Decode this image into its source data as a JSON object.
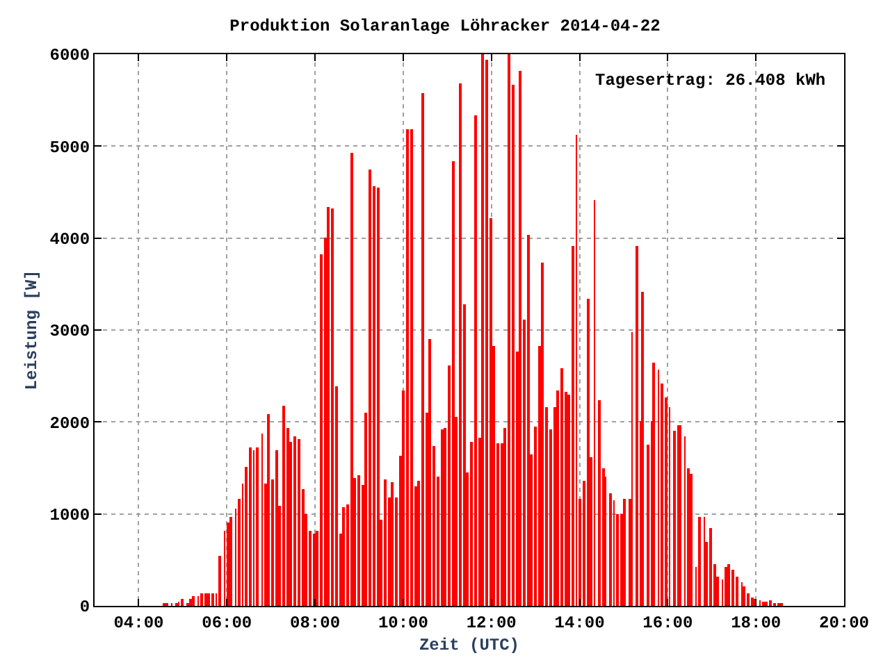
{
  "chart_data": {
    "type": "bar",
    "title": "Produktion Solaranlage Löhracker 2014-04-22",
    "xlabel": "Zeit (UTC)",
    "ylabel": "Leistung [W]",
    "annotations": [
      "Tagesertrag: 26.408 kWh"
    ],
    "x": [
      4.59,
      4.65,
      4.75,
      4.85,
      4.91,
      5.0,
      5.1,
      5.19,
      5.25,
      5.35,
      5.44,
      5.51,
      5.6,
      5.69,
      5.76,
      5.85,
      5.95,
      6.04,
      6.1,
      6.2,
      6.29,
      6.36,
      6.45,
      6.54,
      6.61,
      6.7,
      6.8,
      6.89,
      6.95,
      7.05,
      7.14,
      7.2,
      7.3,
      7.39,
      7.46,
      7.55,
      7.64,
      7.74,
      7.8,
      7.9,
      7.99,
      8.05,
      8.15,
      8.23,
      8.31,
      8.4,
      8.49,
      8.59,
      8.65,
      8.75,
      8.84,
      8.9,
      9.0,
      9.09,
      9.15,
      9.25,
      9.34,
      9.44,
      9.5,
      9.59,
      9.69,
      9.75,
      9.85,
      9.94,
      10.0,
      10.1,
      10.19,
      10.29,
      10.35,
      10.44,
      10.54,
      10.6,
      10.7,
      10.79,
      10.88,
      10.95,
      11.04,
      11.14,
      11.2,
      11.29,
      11.39,
      11.45,
      11.54,
      11.64,
      11.73,
      11.8,
      11.89,
      11.98,
      12.05,
      12.14,
      12.24,
      12.3,
      12.39,
      12.49,
      12.58,
      12.64,
      12.74,
      12.83,
      12.9,
      12.99,
      13.08,
      13.15,
      13.24,
      13.34,
      13.43,
      13.49,
      13.59,
      13.68,
      13.75,
      13.84,
      13.93,
      14.0,
      14.09,
      14.19,
      14.25,
      14.34,
      14.44,
      14.53,
      14.59,
      14.69,
      14.78,
      14.85,
      14.94,
      15.03,
      15.13,
      15.19,
      15.29,
      15.38,
      15.44,
      15.54,
      15.63,
      15.69,
      15.79,
      15.88,
      15.95,
      16.04,
      16.14,
      16.23,
      16.29,
      16.39,
      16.48,
      16.54,
      16.64,
      16.73,
      16.83,
      16.89,
      16.98,
      17.08,
      17.14,
      17.24,
      17.33,
      17.39,
      17.49,
      17.58,
      17.68,
      17.74,
      17.83,
      17.93,
      17.99,
      18.09,
      18.18,
      18.24,
      18.34,
      18.43,
      18.53,
      18.59
    ],
    "values": [
      20,
      20,
      30,
      30,
      50,
      70,
      30,
      80,
      100,
      110,
      130,
      140,
      140,
      140,
      140,
      540,
      810,
      900,
      970,
      1060,
      1170,
      1330,
      1510,
      1720,
      1690,
      1720,
      1870,
      1330,
      2080,
      1370,
      1700,
      1090,
      2180,
      1940,
      1780,
      1840,
      1810,
      1270,
      1000,
      810,
      790,
      820,
      3820,
      4000,
      4340,
      4330,
      2390,
      780,
      1080,
      1110,
      4920,
      1390,
      1420,
      1320,
      2100,
      4740,
      4560,
      4550,
      930,
      1380,
      1180,
      1350,
      1180,
      1630,
      2350,
      5190,
      5190,
      1300,
      1360,
      5580,
      2100,
      2900,
      1740,
      1410,
      1920,
      1930,
      2620,
      4830,
      2050,
      5690,
      3280,
      1450,
      1780,
      5340,
      1830,
      6000,
      5940,
      4220,
      2830,
      1770,
      1770,
      1930,
      6000,
      5670,
      2770,
      5820,
      3120,
      4030,
      1650,
      1950,
      2830,
      3740,
      2160,
      1920,
      2160,
      2350,
      2590,
      2330,
      2300,
      3910,
      5130,
      1170,
      1360,
      3340,
      1620,
      4420,
      2240,
      1500,
      1410,
      1230,
      1150,
      1000,
      1000,
      1170,
      1170,
      2980,
      3910,
      2010,
      3420,
      1760,
      2010,
      2650,
      2570,
      2420,
      2270,
      2160,
      1900,
      1960,
      1960,
      1850,
      1490,
      1430,
      420,
      960,
      960,
      700,
      850,
      450,
      310,
      280,
      430,
      460,
      390,
      310,
      250,
      210,
      130,
      90,
      75,
      60,
      50,
      50,
      60,
      30,
      20,
      20
    ],
    "color": "#ff0000",
    "xlim": [
      3,
      20
    ],
    "xticks": [
      {
        "value": 4,
        "label": "04:00"
      },
      {
        "value": 6,
        "label": "06:00"
      },
      {
        "value": 8,
        "label": "08:00"
      },
      {
        "value": 10,
        "label": "10:00"
      },
      {
        "value": 12,
        "label": "12:00"
      },
      {
        "value": 14,
        "label": "14:00"
      },
      {
        "value": 16,
        "label": "16:00"
      },
      {
        "value": 18,
        "label": "18:00"
      },
      {
        "value": 20,
        "label": "20:00"
      }
    ],
    "ylim": [
      0,
      6000
    ],
    "yticks": [
      0,
      1000,
      2000,
      3000,
      4000,
      5000,
      6000
    ],
    "grid": true
  }
}
